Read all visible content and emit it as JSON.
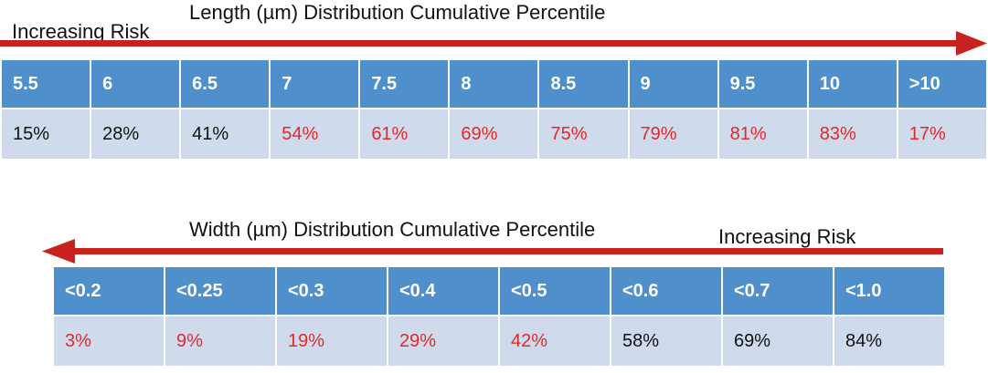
{
  "chart_data": [
    {
      "type": "table",
      "title": "Length (µm) Distribution Cumulative Percentile",
      "risk_label": "Increasing Risk",
      "risk_direction": "right",
      "colors": {
        "header": "#4f8fcc",
        "row": "#cfdbec",
        "arrow": "#c9211e",
        "high_risk_text": "#e02a2a"
      },
      "categories": [
        "5.5",
        "6",
        "6.5",
        "7",
        "7.5",
        "8",
        "8.5",
        "9",
        "9.5",
        "10",
        ">10"
      ],
      "values": [
        "15%",
        "28%",
        "41%",
        "54%",
        "61%",
        "69%",
        "75%",
        "79%",
        "81%",
        "83%",
        "17%"
      ],
      "high_risk": [
        false,
        false,
        false,
        true,
        true,
        true,
        true,
        true,
        true,
        true,
        true
      ]
    },
    {
      "type": "table",
      "title": "Width (µm) Distribution Cumulative Percentile",
      "risk_label": "Increasing Risk",
      "risk_direction": "left",
      "colors": {
        "header": "#4f8fcc",
        "row": "#cfdbec",
        "arrow": "#c9211e",
        "high_risk_text": "#e02a2a"
      },
      "categories": [
        "<0.2",
        "<0.25",
        "<0.3",
        "<0.4",
        "<0.5",
        "<0.6",
        "<0.7",
        "<1.0"
      ],
      "values": [
        "3%",
        "9%",
        "19%",
        "29%",
        "42%",
        "58%",
        "69%",
        "84%"
      ],
      "high_risk": [
        true,
        true,
        true,
        true,
        true,
        false,
        false,
        false
      ]
    }
  ]
}
